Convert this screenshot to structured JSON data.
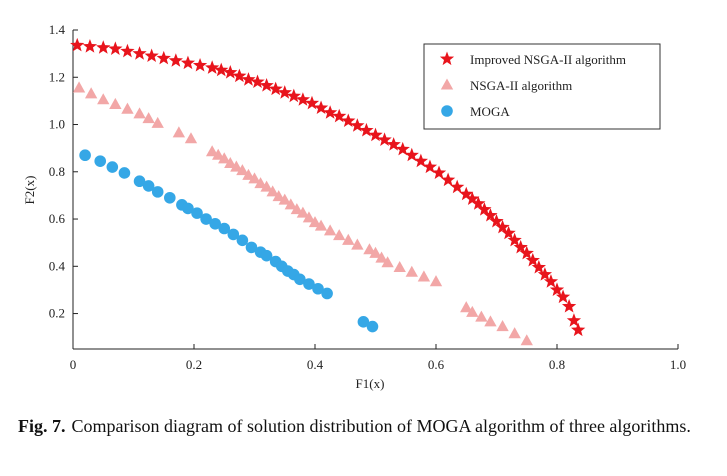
{
  "chart_data": {
    "type": "scatter",
    "xlabel": "F1(x)",
    "ylabel": "F2(x)",
    "xlim": [
      0,
      1.0
    ],
    "ylim": [
      0.05,
      1.4
    ],
    "x_ticks": [
      "0",
      "0.2",
      "0.4",
      "0.6",
      "0.8",
      "1.0"
    ],
    "x_tick_values": [
      0,
      0.2,
      0.4,
      0.6,
      0.8,
      1.0
    ],
    "y_ticks": [
      "0.2",
      "0.4",
      "0.6",
      "0.8",
      "1.0",
      "1.2",
      "1.4"
    ],
    "y_tick_values": [
      0.2,
      0.4,
      0.6,
      0.8,
      1.0,
      1.2,
      1.4
    ],
    "grid": false,
    "legend_position": "top-right",
    "series": [
      {
        "name": "Improved NSGA-II algorithm",
        "marker": "star",
        "color": "#e8141c",
        "x": [
          0.007,
          0.028,
          0.05,
          0.07,
          0.09,
          0.11,
          0.13,
          0.15,
          0.17,
          0.19,
          0.21,
          0.23,
          0.245,
          0.26,
          0.275,
          0.29,
          0.305,
          0.32,
          0.335,
          0.35,
          0.365,
          0.38,
          0.395,
          0.41,
          0.425,
          0.44,
          0.455,
          0.47,
          0.485,
          0.5,
          0.515,
          0.53,
          0.545,
          0.56,
          0.575,
          0.59,
          0.605,
          0.62,
          0.635,
          0.65,
          0.66,
          0.67,
          0.68,
          0.69,
          0.7,
          0.71,
          0.72,
          0.73,
          0.74,
          0.75,
          0.76,
          0.77,
          0.78,
          0.79,
          0.8,
          0.81,
          0.82,
          0.828,
          0.835
        ],
        "y": [
          1.335,
          1.33,
          1.325,
          1.32,
          1.31,
          1.3,
          1.29,
          1.28,
          1.27,
          1.26,
          1.25,
          1.24,
          1.23,
          1.22,
          1.205,
          1.19,
          1.18,
          1.165,
          1.15,
          1.135,
          1.12,
          1.105,
          1.09,
          1.07,
          1.05,
          1.035,
          1.015,
          0.995,
          0.975,
          0.955,
          0.935,
          0.915,
          0.895,
          0.87,
          0.845,
          0.82,
          0.795,
          0.765,
          0.735,
          0.705,
          0.685,
          0.665,
          0.64,
          0.615,
          0.59,
          0.565,
          0.54,
          0.51,
          0.48,
          0.455,
          0.425,
          0.395,
          0.365,
          0.335,
          0.3,
          0.27,
          0.23,
          0.17,
          0.13
        ]
      },
      {
        "name": "NSGA-II algorithm",
        "marker": "triangle",
        "color": "#f2a7a7",
        "x": [
          0.01,
          0.03,
          0.05,
          0.07,
          0.09,
          0.11,
          0.125,
          0.14,
          0.175,
          0.195,
          0.23,
          0.24,
          0.25,
          0.26,
          0.27,
          0.28,
          0.29,
          0.3,
          0.31,
          0.32,
          0.33,
          0.34,
          0.35,
          0.36,
          0.37,
          0.38,
          0.39,
          0.4,
          0.41,
          0.425,
          0.44,
          0.455,
          0.47,
          0.49,
          0.5,
          0.51,
          0.52,
          0.54,
          0.56,
          0.58,
          0.6,
          0.65,
          0.66,
          0.675,
          0.69,
          0.71,
          0.73,
          0.75
        ],
        "y": [
          1.155,
          1.13,
          1.105,
          1.085,
          1.065,
          1.045,
          1.025,
          1.005,
          0.965,
          0.94,
          0.885,
          0.87,
          0.855,
          0.835,
          0.82,
          0.805,
          0.785,
          0.77,
          0.75,
          0.735,
          0.715,
          0.695,
          0.68,
          0.66,
          0.64,
          0.625,
          0.605,
          0.585,
          0.57,
          0.55,
          0.53,
          0.51,
          0.49,
          0.47,
          0.455,
          0.435,
          0.415,
          0.395,
          0.375,
          0.355,
          0.335,
          0.225,
          0.205,
          0.185,
          0.165,
          0.145,
          0.115,
          0.085
        ]
      },
      {
        "name": "MOGA",
        "marker": "circle",
        "color": "#35a7e6",
        "x": [
          0.02,
          0.045,
          0.065,
          0.085,
          0.11,
          0.125,
          0.14,
          0.16,
          0.18,
          0.19,
          0.205,
          0.22,
          0.235,
          0.25,
          0.265,
          0.28,
          0.295,
          0.31,
          0.32,
          0.335,
          0.345,
          0.355,
          0.365,
          0.375,
          0.39,
          0.405,
          0.42,
          0.48,
          0.495
        ],
        "y": [
          0.87,
          0.845,
          0.82,
          0.795,
          0.76,
          0.74,
          0.715,
          0.69,
          0.66,
          0.645,
          0.625,
          0.6,
          0.58,
          0.56,
          0.535,
          0.51,
          0.48,
          0.46,
          0.445,
          0.42,
          0.4,
          0.38,
          0.365,
          0.345,
          0.325,
          0.305,
          0.285,
          0.165,
          0.145
        ]
      }
    ]
  },
  "caption": {
    "label": "Fig. 7.",
    "text": "Comparison diagram of solution distribution of MOGA algorithm of three algorithms."
  },
  "colors": {
    "axis": "#222222",
    "legend_border": "#333333"
  }
}
